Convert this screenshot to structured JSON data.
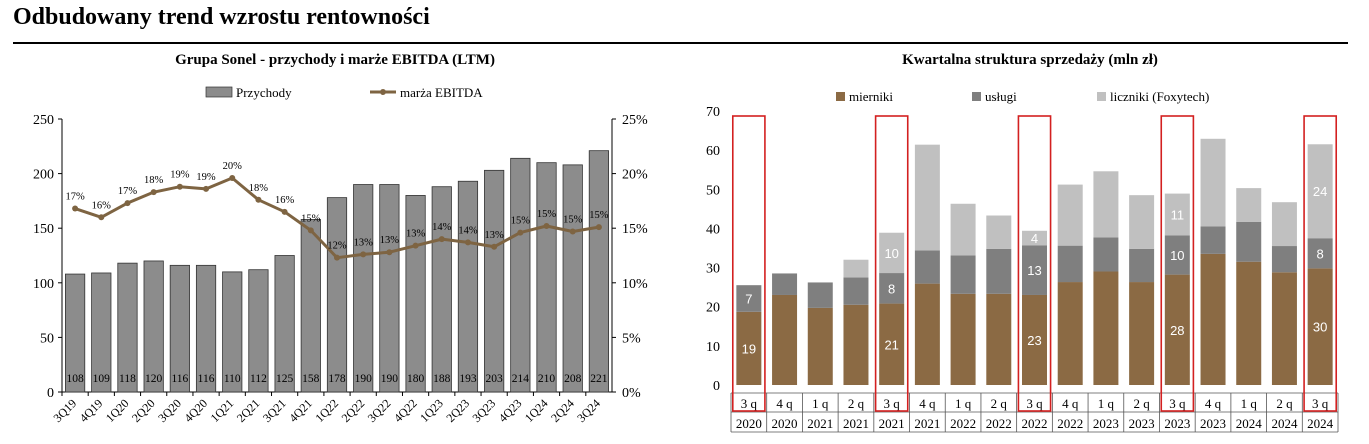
{
  "page": {
    "title": "Odbudowany trend wzrostu rentowności"
  },
  "chart_data": [
    {
      "type": "bar",
      "title": "Grupa Sonel - przychody i marże EBITDA (LTM)",
      "categories": [
        "3Q19",
        "4Q19",
        "1Q20",
        "2Q20",
        "3Q20",
        "4Q20",
        "1Q21",
        "2Q21",
        "3Q21",
        "4Q21",
        "1Q22",
        "2Q22",
        "3Q22",
        "4Q22",
        "1Q23",
        "2Q23",
        "3Q23",
        "4Q23",
        "1Q24",
        "2Q24",
        "3Q24"
      ],
      "series": [
        {
          "name": "Przychody",
          "type": "bar",
          "axis": "left",
          "values": [
            108,
            109,
            118,
            120,
            116,
            116,
            110,
            112,
            125,
            158,
            178,
            190,
            190,
            180,
            188,
            193,
            203,
            214,
            210,
            208,
            221
          ]
        },
        {
          "name": "marża EBITDA",
          "type": "line",
          "axis": "right",
          "values": [
            16.8,
            16.0,
            17.3,
            18.3,
            18.8,
            18.6,
            19.6,
            17.6,
            16.5,
            14.8,
            12.3,
            12.6,
            12.8,
            13.4,
            14.0,
            13.7,
            13.3,
            14.6,
            15.2,
            14.7,
            15.1
          ],
          "labels": [
            "17%",
            "16%",
            "17%",
            "18%",
            "19%",
            "19%",
            "20%",
            "18%",
            "16%",
            "15%",
            "12%",
            "13%",
            "13%",
            "13%",
            "14%",
            "14%",
            "13%",
            "15%",
            "15%",
            "15%",
            "15%"
          ]
        }
      ],
      "y_left": {
        "range": [
          0,
          250
        ],
        "ticks": [
          "0",
          "50",
          "100",
          "150",
          "200",
          "250"
        ]
      },
      "y_right": {
        "range": [
          0,
          25
        ],
        "ticks": [
          "0%",
          "5%",
          "10%",
          "15%",
          "20%",
          "25%"
        ]
      },
      "legend": {
        "position": "top"
      },
      "colors": {
        "bar": "#8c8c8c",
        "line": "#7e6442"
      }
    },
    {
      "type": "bar",
      "stacked": true,
      "title": "Kwartalna struktura sprzedaży (mln zł)",
      "categories": [
        {
          "q": "3 q",
          "y": "2020",
          "highlight": true
        },
        {
          "q": "4 q",
          "y": "2020",
          "highlight": false
        },
        {
          "q": "1 q",
          "y": "2021",
          "highlight": false
        },
        {
          "q": "2 q",
          "y": "2021",
          "highlight": false
        },
        {
          "q": "3 q",
          "y": "2021",
          "highlight": true
        },
        {
          "q": "4 q",
          "y": "2021",
          "highlight": false
        },
        {
          "q": "1 q",
          "y": "2022",
          "highlight": false
        },
        {
          "q": "2 q",
          "y": "2022",
          "highlight": false
        },
        {
          "q": "3 q",
          "y": "2022",
          "highlight": true
        },
        {
          "q": "4 q",
          "y": "2022",
          "highlight": false
        },
        {
          "q": "1 q",
          "y": "2023",
          "highlight": false
        },
        {
          "q": "2 q",
          "y": "2023",
          "highlight": false
        },
        {
          "q": "3 q",
          "y": "2023",
          "highlight": true
        },
        {
          "q": "4 q",
          "y": "2023",
          "highlight": false
        },
        {
          "q": "1 q",
          "y": "2024",
          "highlight": false
        },
        {
          "q": "2 q",
          "y": "2024",
          "highlight": false
        },
        {
          "q": "3 q",
          "y": "2024",
          "highlight": true
        }
      ],
      "series": [
        {
          "name": "mierniki",
          "color": "#8b6a44",
          "values": [
            18.7,
            23.0,
            19.7,
            20.5,
            20.8,
            25.9,
            23.3,
            23.3,
            23.0,
            26.3,
            29.0,
            26.3,
            28.2,
            33.5,
            31.5,
            28.8,
            29.8
          ],
          "labels": [
            "19",
            "",
            "",
            "",
            "21",
            "",
            "",
            "",
            "23",
            "",
            "",
            "",
            "28",
            "",
            "",
            "",
            "30"
          ]
        },
        {
          "name": "usługi",
          "color": "#7f7f7f",
          "values": [
            6.8,
            5.5,
            6.5,
            7.0,
            7.8,
            8.5,
            9.8,
            11.5,
            12.7,
            9.3,
            8.7,
            8.5,
            10.0,
            7.0,
            10.2,
            6.7,
            7.7
          ],
          "labels": [
            "7",
            "",
            "",
            "",
            "8",
            "",
            "",
            "",
            "13",
            "",
            "",
            "",
            "10",
            "",
            "",
            "",
            "8"
          ]
        },
        {
          "name": "liczniki (Foxytech)",
          "color": "#c0c0c0",
          "values": [
            0,
            0,
            0,
            4.5,
            10.3,
            27.0,
            13.2,
            8.5,
            3.7,
            15.6,
            16.9,
            13.7,
            10.7,
            22.4,
            8.6,
            11.2,
            24.0
          ],
          "labels": [
            "",
            "",
            "",
            "",
            "10",
            "",
            "",
            "",
            "4",
            "",
            "",
            "",
            "11",
            "",
            "",
            "",
            "24"
          ]
        }
      ],
      "y_axis": {
        "range": [
          0,
          70
        ],
        "ticks": [
          "0",
          "10",
          "20",
          "30",
          "40",
          "50",
          "60",
          "70"
        ]
      },
      "legend": {
        "position": "top"
      }
    }
  ]
}
